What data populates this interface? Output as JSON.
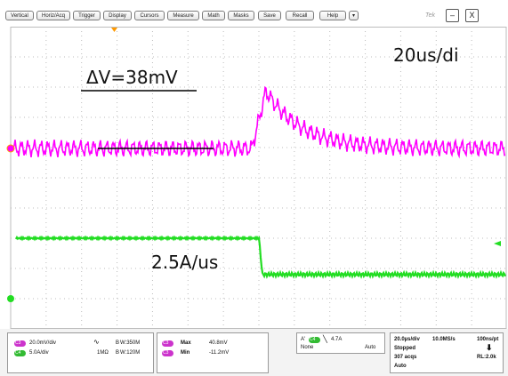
{
  "menu": {
    "items": [
      "Vertical",
      "Horiz/Acq",
      "Trigger",
      "Display",
      "Cursors",
      "Measure",
      "Math",
      "Masks",
      "Save",
      "Recall",
      "Help"
    ],
    "dropdown_icon": "▾",
    "brand": "Tek",
    "minimize_label": "–",
    "close_label": "X"
  },
  "annotations": {
    "delta_v": "ΔV=38mV",
    "time_div": "20us/di",
    "slew_rate": "2.5A/us"
  },
  "colors": {
    "ch3": "#ff00ff",
    "ch4": "#22dd22",
    "grid": "#bdbdbd",
    "trigger_marker": "#ff9900"
  },
  "channels": {
    "ch3": {
      "tag": "C3",
      "scale": "20.0mV/div",
      "bw": "B",
      "bw_value": "W:350M"
    },
    "ch4": {
      "tag": "C4",
      "scale": "5.0A/div",
      "impedance": "1MΩ",
      "bw": "B",
      "bw_value": "W:120M"
    }
  },
  "measurements": [
    {
      "tag": "C3",
      "label": "Max",
      "value": "40.8mV"
    },
    {
      "tag": "C3",
      "label": "Min",
      "value": "-11.2mV"
    }
  ],
  "trigger": {
    "label": "A'",
    "source": "C4",
    "level": "4.7A",
    "mode_left": "None",
    "mode_right": "Auto"
  },
  "acquisition": {
    "timebase": "20.0µs/div",
    "sample_rate": "10.0MS/s",
    "resolution": "100ns/pt",
    "state": "Stopped",
    "acqs": "307 acqs",
    "record_length": "RL:2.0k",
    "mode": "Auto"
  },
  "chart_data": {
    "type": "line",
    "xlim": [
      -140,
      140
    ],
    "x_unit": "µs",
    "time_per_div": "20us",
    "divisions_x": 14,
    "divisions_y": 10,
    "series": [
      {
        "name": "C3",
        "scale": "20.0mV/div",
        "baseline_mV": 0,
        "peak_mV": 38,
        "ripple_pp_mV": 8,
        "step_time_us": 0,
        "decay_tau_us": 20
      },
      {
        "name": "C4",
        "scale": "5.0A/div",
        "high_level_div": 2.0,
        "low_level_div": 0.8,
        "step_time_us": 0,
        "slew": "2.5A/us"
      }
    ]
  }
}
